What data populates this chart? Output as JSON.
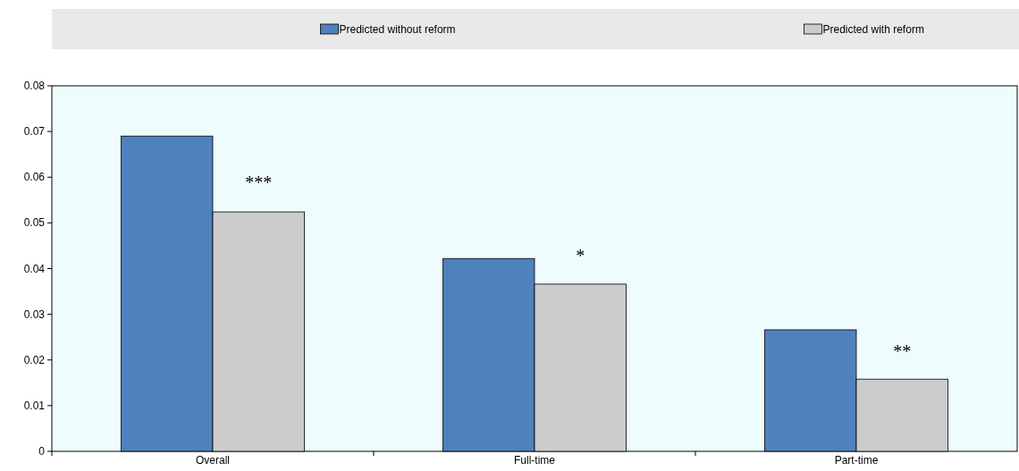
{
  "chart_data": {
    "type": "bar",
    "categories": [
      "Overall",
      "Full-time",
      "Part-time"
    ],
    "series": [
      {
        "name": "Predicted without reform",
        "color": "#4f81bd",
        "values": [
          0.069,
          0.0422,
          0.0266
        ]
      },
      {
        "name": "Predicted with reform",
        "color": "#cccccc",
        "values": [
          0.0524,
          0.0366,
          0.0158
        ]
      }
    ],
    "ylim": [
      0,
      0.08
    ],
    "yticks": [
      {
        "value": 0,
        "label": "0"
      },
      0.01,
      0.02,
      0.03,
      0.04,
      0.05,
      0.06,
      0.07,
      0.08
    ],
    "grid": false,
    "legend": "top",
    "annotations": [
      {
        "text": "***",
        "x": "Overall",
        "y": 0.0575
      },
      {
        "text": "*",
        "x": "Full-time",
        "y": 0.0415
      },
      {
        "text": "**",
        "x": "Part-time",
        "y": 0.0205
      }
    ]
  }
}
